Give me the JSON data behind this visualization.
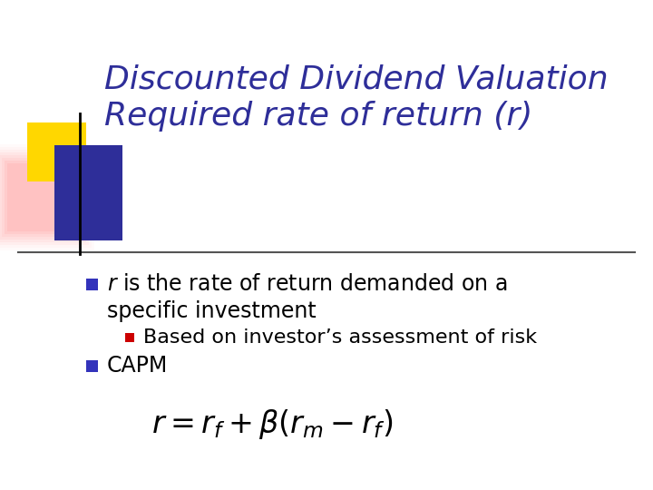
{
  "title_line1": "Discounted Dividend Valuation",
  "title_line2": "Required rate of return (r)",
  "title_color": "#2E2E99",
  "title_fontsize": 26,
  "bg_color": "#FFFFFF",
  "bullet1_color": "#000000",
  "subbullet1_text": "Based on investor’s assessment of risk",
  "subbullet1_color": "#000000",
  "bullet2_text": "CAPM",
  "bullet2_color": "#000000",
  "bullet_square_color": "#3333BB",
  "sub_bullet_square_color": "#CC0000",
  "separator_color": "#555555",
  "deco_yellow": "#FFD700",
  "deco_blue": "#2E2E99",
  "deco_red_pink": "#FF8888",
  "body_fontsize": 17,
  "formula_fontsize": 24
}
